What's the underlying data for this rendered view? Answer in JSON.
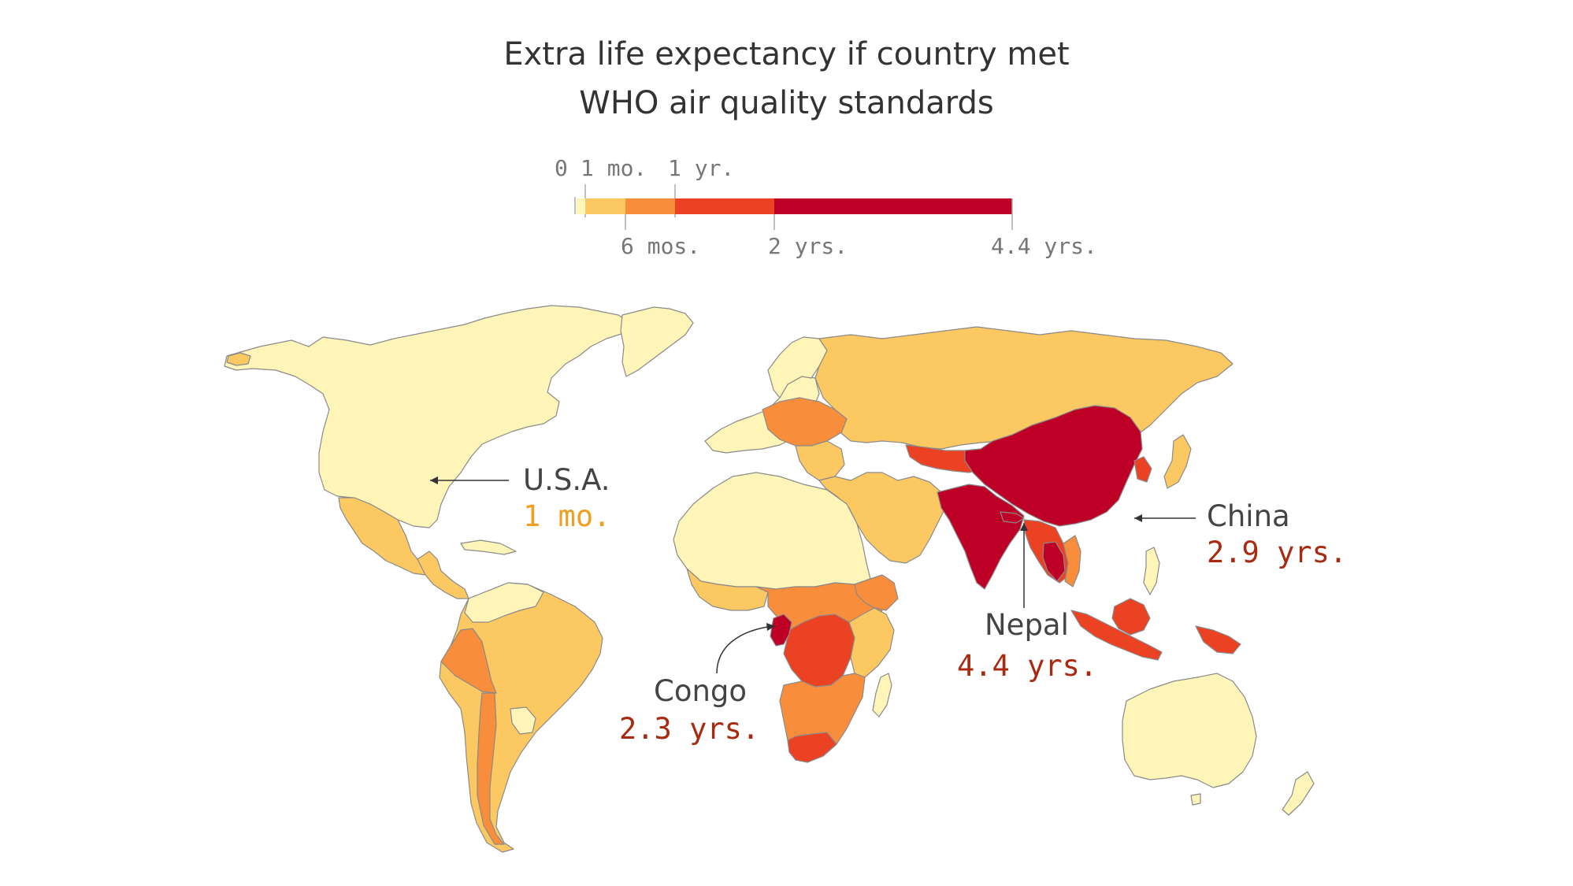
{
  "title": {
    "line1": "Extra life expectancy if country met",
    "line2": "WHO air quality standards"
  },
  "legend": {
    "labels_above": [
      "1 mo.",
      "1 yr."
    ],
    "labels_below": [
      "6 mos.",
      "2 yrs.",
      "4.4 yrs."
    ],
    "zero_label": "0",
    "bins": [
      {
        "from_years": 0,
        "to_years": 0.083,
        "color": "#fff5b8"
      },
      {
        "from_years": 0.083,
        "to_years": 0.5,
        "color": "#fcc862"
      },
      {
        "from_years": 0.5,
        "to_years": 1,
        "color": "#f88d3c"
      },
      {
        "from_years": 1,
        "to_years": 2,
        "color": "#ec4224"
      },
      {
        "from_years": 2,
        "to_years": 4.4,
        "color": "#be0026"
      }
    ]
  },
  "callouts": [
    {
      "id": "usa",
      "name": "U.S.A.",
      "value": "1 mo.",
      "value_color": "#f0a020"
    },
    {
      "id": "china",
      "name": "China",
      "value": "2.9 yrs.",
      "value_color": "#a82a10"
    },
    {
      "id": "nepal",
      "name": "Nepal",
      "value": "4.4 yrs.",
      "value_color": "#a82a10"
    },
    {
      "id": "congo",
      "name": "Congo",
      "value": "2.3 yrs.",
      "value_color": "#a82a10"
    }
  ],
  "colors": {
    "text": "#333333",
    "tick_text": "#777777",
    "country_border": "#8a8a8a"
  }
}
